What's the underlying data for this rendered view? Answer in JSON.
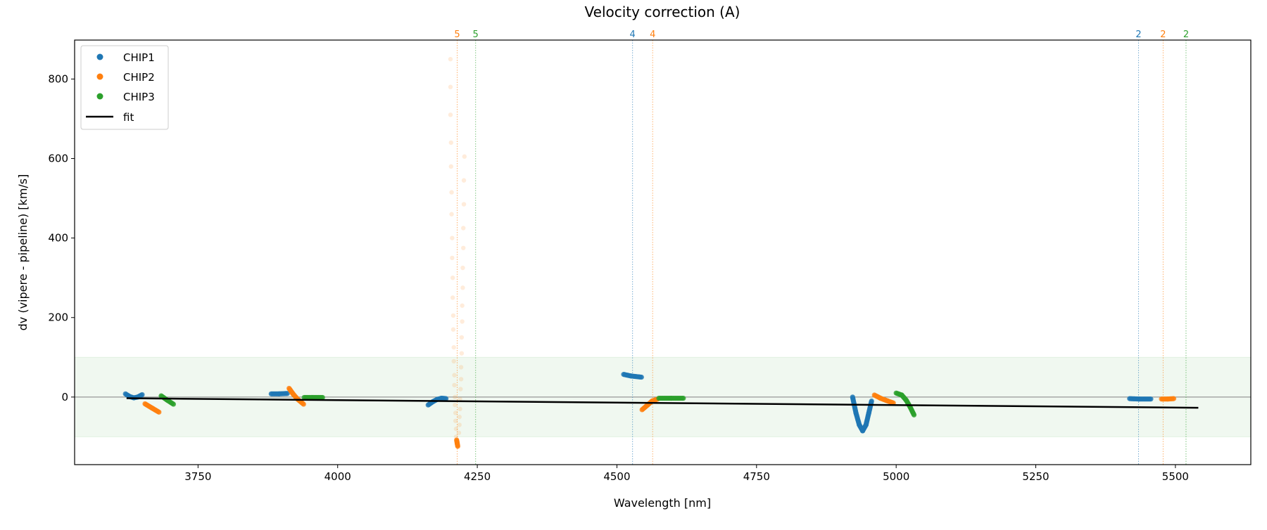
{
  "chart_data": {
    "type": "scatter",
    "title": "Velocity correction (A)",
    "xlabel": "Wavelength [nm]",
    "ylabel": "dv (vipere - pipeline) [km/s]",
    "xlim": [
      3529,
      5635
    ],
    "ylim": [
      -170,
      898
    ],
    "xticks": [
      3750,
      4000,
      4250,
      4500,
      4750,
      5000,
      5250,
      5500
    ],
    "yticks": [
      0,
      200,
      400,
      600,
      800
    ],
    "grid": false,
    "legend_position": "top-left",
    "band": {
      "low": -100,
      "high": 100,
      "color": "#2ca02c"
    },
    "zero_line": 0,
    "series": [
      {
        "name": "CHIP1",
        "color": "#1f77b4",
        "segments": [
          [
            [
              3620,
              8
            ],
            [
              3628,
              1
            ],
            [
              3635,
              -2
            ],
            [
              3642,
              0
            ],
            [
              3650,
              6
            ]
          ],
          [
            [
              3881,
              8
            ],
            [
              3895,
              8
            ],
            [
              3910,
              9
            ]
          ],
          [
            [
              4162,
              -20
            ],
            [
              4170,
              -12
            ],
            [
              4178,
              -6
            ],
            [
              4186,
              -3
            ],
            [
              4194,
              -4
            ]
          ],
          [
            [
              4512,
              57
            ],
            [
              4525,
              53
            ],
            [
              4544,
              50
            ]
          ],
          [
            [
              4922,
              0
            ],
            [
              4928,
              -40
            ],
            [
              4934,
              -70
            ],
            [
              4940,
              -85
            ],
            [
              4946,
              -70
            ],
            [
              4951,
              -40
            ],
            [
              4956,
              -10
            ]
          ],
          [
            [
              5418,
              -4
            ],
            [
              5435,
              -5
            ],
            [
              5456,
              -5
            ]
          ]
        ]
      },
      {
        "name": "CHIP2",
        "color": "#ff7f0e",
        "segments": [
          [
            [
              3655,
              -17
            ],
            [
              3668,
              -28
            ],
            [
              3680,
              -38
            ]
          ],
          [
            [
              3913,
              22
            ],
            [
              3920,
              8
            ],
            [
              3928,
              -5
            ],
            [
              3939,
              -18
            ]
          ],
          [
            [
              4213,
              -108
            ],
            [
              4214,
              -116
            ],
            [
              4215,
              -124
            ]
          ],
          [
            [
              4545,
              -32
            ],
            [
              4555,
              -20
            ],
            [
              4563,
              -10
            ],
            [
              4573,
              -5
            ]
          ],
          [
            [
              4961,
              5
            ],
            [
              4972,
              -3
            ],
            [
              4985,
              -10
            ],
            [
              4995,
              -15
            ]
          ],
          [
            [
              5475,
              -5
            ],
            [
              5486,
              -5
            ],
            [
              5497,
              -4
            ]
          ]
        ],
        "outliers": [
          [
            4202,
            850
          ],
          [
            4202,
            780
          ],
          [
            4202,
            710
          ],
          [
            4203,
            640
          ],
          [
            4203,
            580
          ],
          [
            4204,
            515
          ],
          [
            4204,
            460
          ],
          [
            4205,
            400
          ],
          [
            4205,
            350
          ],
          [
            4206,
            300
          ],
          [
            4206,
            250
          ],
          [
            4207,
            205
          ],
          [
            4207,
            170
          ],
          [
            4208,
            125
          ],
          [
            4208,
            90
          ],
          [
            4209,
            55
          ],
          [
            4209,
            30
          ],
          [
            4210,
            0
          ],
          [
            4210,
            -20
          ],
          [
            4211,
            -40
          ],
          [
            4211,
            -60
          ],
          [
            4212,
            -80
          ],
          [
            4212,
            -100
          ],
          [
            4227,
            605
          ],
          [
            4226,
            545
          ],
          [
            4226,
            485
          ],
          [
            4225,
            425
          ],
          [
            4225,
            375
          ],
          [
            4224,
            325
          ],
          [
            4224,
            275
          ],
          [
            4223,
            230
          ],
          [
            4223,
            190
          ],
          [
            4222,
            150
          ],
          [
            4222,
            110
          ],
          [
            4221,
            75
          ],
          [
            4221,
            45
          ],
          [
            4220,
            20
          ],
          [
            4219,
            -5
          ],
          [
            4219,
            -30
          ],
          [
            4218,
            -50
          ],
          [
            4218,
            -70
          ],
          [
            4217,
            -90
          ]
        ]
      },
      {
        "name": "CHIP3",
        "color": "#2ca02c",
        "segments": [
          [
            [
              3684,
              3
            ],
            [
              3695,
              -8
            ],
            [
              3706,
              -18
            ]
          ],
          [
            [
              3940,
              -1
            ],
            [
              3955,
              -1
            ],
            [
              3973,
              -1
            ]
          ],
          [
            [
              4575,
              -3
            ],
            [
              4597,
              -3
            ],
            [
              4619,
              -3
            ]
          ],
          [
            [
              5000,
              10
            ],
            [
              5010,
              5
            ],
            [
              5018,
              -8
            ],
            [
              5025,
              -25
            ],
            [
              5032,
              -45
            ]
          ]
        ]
      },
      {
        "name": "fit",
        "color": "#000000",
        "line": [
          [
            3622,
            -3
          ],
          [
            5541,
            -27
          ]
        ]
      }
    ],
    "markers": [
      {
        "x": 4214,
        "label": "5",
        "color": "#ff7f0e"
      },
      {
        "x": 4247,
        "label": "5",
        "color": "#2ca02c"
      },
      {
        "x": 4528,
        "label": "4",
        "color": "#1f77b4"
      },
      {
        "x": 4564,
        "label": "4",
        "color": "#ff7f0e"
      },
      {
        "x": 5434,
        "label": "2",
        "color": "#1f77b4"
      },
      {
        "x": 5478,
        "label": "2",
        "color": "#ff7f0e"
      },
      {
        "x": 5519,
        "label": "2",
        "color": "#2ca02c"
      }
    ],
    "legend": [
      "CHIP1",
      "CHIP2",
      "CHIP3",
      "fit"
    ]
  }
}
